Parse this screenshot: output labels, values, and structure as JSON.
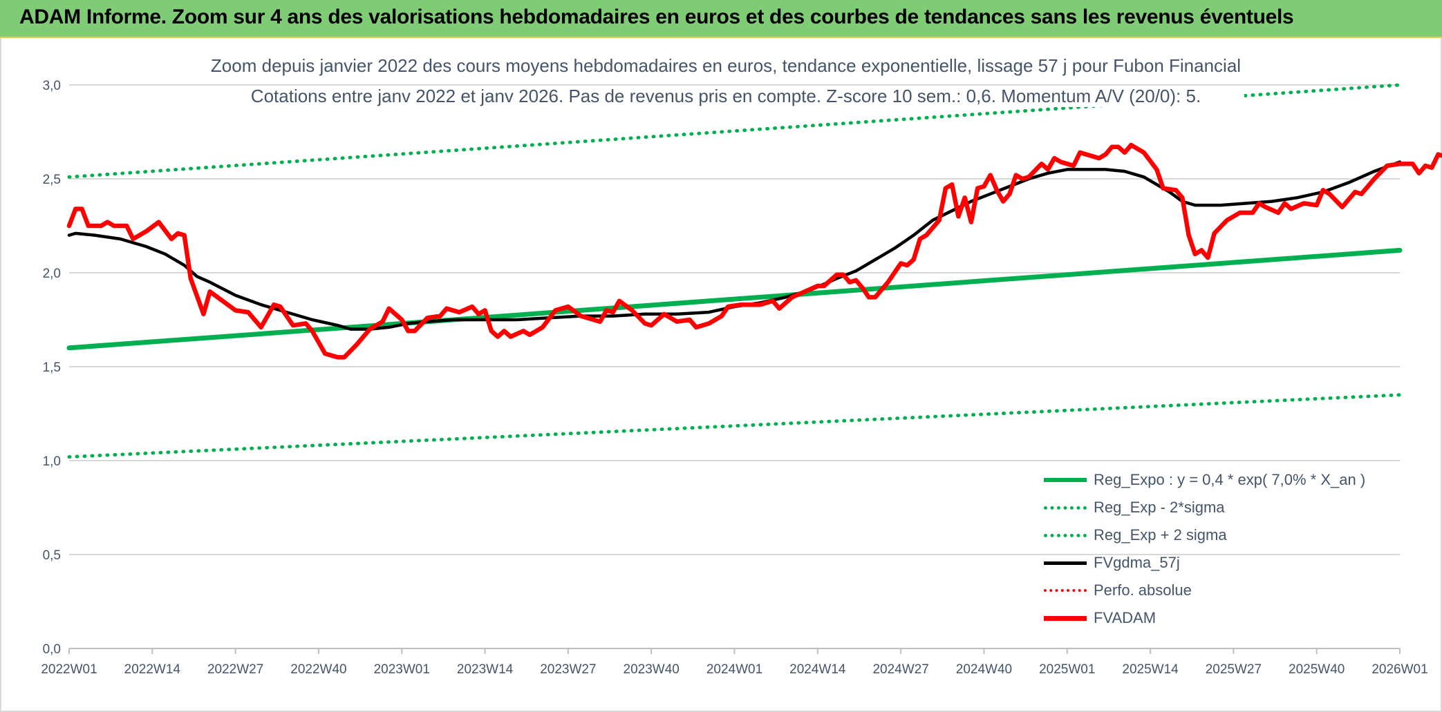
{
  "header": {
    "title": "ADAM Informe. Zoom sur 4 ans des valorisations hebdomadaires en euros et des courbes de tendances sans les revenus éventuels"
  },
  "colors": {
    "banner": "#7fcb76",
    "trend": "#00b050",
    "smooth": "#000000",
    "price": "#ff0000",
    "text": "#44546a",
    "grid": "#d9d9d9"
  },
  "chart_data": {
    "type": "line",
    "title_line1": "Zoom depuis janvier 2022 des cours moyens hebdomadaires en euros, tendance exponentielle, lissage 57 j pour Fubon Financial",
    "title_line2": "Cotations entre janv 2022 et janv 2026. Pas de revenus pris en compte. Z-score 10 sem.: 0,6. Momentum A/V (20/0): 5.",
    "x_tick_labels": [
      "2022W01",
      "2022W14",
      "2022W27",
      "2022W40",
      "2023W01",
      "2023W14",
      "2023W27",
      "2023W40",
      "2024W01",
      "2024W14",
      "2024W27",
      "2024W40",
      "2025W01",
      "2025W14",
      "2025W27",
      "2025W40",
      "2026W01"
    ],
    "y_tick_labels": [
      "0,0",
      "0,5",
      "1,0",
      "1,5",
      "2,0",
      "2,5",
      "3,0"
    ],
    "ylim": [
      0,
      3
    ],
    "grid": true,
    "legend_position": "bottom-right",
    "legend": [
      {
        "label": "Reg_Expo : y = 0,4 * exp( 7,0% *  X_an )",
        "style": "solid-green"
      },
      {
        "label": "Reg_Exp - 2*sigma",
        "style": "dot-green"
      },
      {
        "label": "Reg_Exp + 2 sigma",
        "style": "dot-green"
      },
      {
        "label": "FVgdma_57j",
        "style": "solid-black"
      },
      {
        "label": "Perfo. absolue",
        "style": "dot-red"
      },
      {
        "label": "FVADAM",
        "style": "solid-red"
      }
    ],
    "series": [
      {
        "name": "Reg_Expo : y = 0,4 * exp( 7,0% *  X_an )",
        "points": [
          [
            0,
            1.6
          ],
          [
            208,
            2.12
          ]
        ]
      },
      {
        "name": "Reg_Exp - 2*sigma",
        "points": [
          [
            0,
            1.02
          ],
          [
            208,
            1.35
          ]
        ]
      },
      {
        "name": "Reg_Exp + 2 sigma",
        "points": [
          [
            0,
            2.51
          ],
          [
            208,
            3.0
          ]
        ]
      },
      {
        "name": "FVgdma_57j",
        "points": [
          [
            0,
            2.2
          ],
          [
            1,
            2.21
          ],
          [
            4,
            2.2
          ],
          [
            8,
            2.18
          ],
          [
            12,
            2.14
          ],
          [
            15,
            2.1
          ],
          [
            18,
            2.04
          ],
          [
            20,
            1.98
          ],
          [
            22,
            1.95
          ],
          [
            26,
            1.88
          ],
          [
            30,
            1.83
          ],
          [
            34,
            1.79
          ],
          [
            38,
            1.75
          ],
          [
            42,
            1.72
          ],
          [
            44,
            1.7
          ],
          [
            47,
            1.7
          ],
          [
            50,
            1.71
          ],
          [
            53,
            1.73
          ],
          [
            56,
            1.74
          ],
          [
            60,
            1.75
          ],
          [
            65,
            1.75
          ],
          [
            70,
            1.75
          ],
          [
            75,
            1.76
          ],
          [
            80,
            1.77
          ],
          [
            85,
            1.77
          ],
          [
            90,
            1.78
          ],
          [
            95,
            1.78
          ],
          [
            100,
            1.79
          ],
          [
            104,
            1.82
          ],
          [
            108,
            1.84
          ],
          [
            112,
            1.87
          ],
          [
            116,
            1.91
          ],
          [
            120,
            1.97
          ],
          [
            123,
            2.01
          ],
          [
            126,
            2.07
          ],
          [
            129,
            2.13
          ],
          [
            132,
            2.2
          ],
          [
            135,
            2.28
          ],
          [
            138,
            2.33
          ],
          [
            141,
            2.38
          ],
          [
            144,
            2.42
          ],
          [
            147,
            2.46
          ],
          [
            150,
            2.5
          ],
          [
            153,
            2.53
          ],
          [
            156,
            2.55
          ],
          [
            159,
            2.55
          ],
          [
            162,
            2.55
          ],
          [
            165,
            2.54
          ],
          [
            168,
            2.51
          ],
          [
            170,
            2.47
          ],
          [
            172,
            2.43
          ],
          [
            174,
            2.38
          ],
          [
            176,
            2.36
          ],
          [
            180,
            2.36
          ],
          [
            184,
            2.37
          ],
          [
            188,
            2.38
          ],
          [
            192,
            2.4
          ],
          [
            196,
            2.43
          ],
          [
            200,
            2.48
          ],
          [
            204,
            2.54
          ],
          [
            208,
            2.59
          ]
        ]
      },
      {
        "name": "FVADAM",
        "points": [
          [
            0,
            2.25
          ],
          [
            1,
            2.34
          ],
          [
            2,
            2.34
          ],
          [
            3,
            2.25
          ],
          [
            5,
            2.25
          ],
          [
            6,
            2.27
          ],
          [
            7,
            2.25
          ],
          [
            9,
            2.25
          ],
          [
            10,
            2.18
          ],
          [
            12,
            2.22
          ],
          [
            14,
            2.27
          ],
          [
            16,
            2.18
          ],
          [
            17,
            2.21
          ],
          [
            18,
            2.2
          ],
          [
            19,
            1.97
          ],
          [
            21,
            1.78
          ],
          [
            22,
            1.9
          ],
          [
            24,
            1.85
          ],
          [
            26,
            1.8
          ],
          [
            28,
            1.79
          ],
          [
            30,
            1.71
          ],
          [
            32,
            1.83
          ],
          [
            33,
            1.82
          ],
          [
            35,
            1.72
          ],
          [
            37,
            1.73
          ],
          [
            38,
            1.69
          ],
          [
            40,
            1.57
          ],
          [
            42,
            1.55
          ],
          [
            43,
            1.55
          ],
          [
            45,
            1.62
          ],
          [
            47,
            1.7
          ],
          [
            49,
            1.74
          ],
          [
            50,
            1.81
          ],
          [
            52,
            1.75
          ],
          [
            53,
            1.69
          ],
          [
            54,
            1.69
          ],
          [
            56,
            1.76
          ],
          [
            58,
            1.77
          ],
          [
            59,
            1.81
          ],
          [
            61,
            1.79
          ],
          [
            63,
            1.82
          ],
          [
            64,
            1.78
          ],
          [
            65,
            1.8
          ],
          [
            66,
            1.69
          ],
          [
            67,
            1.66
          ],
          [
            68,
            1.69
          ],
          [
            69,
            1.66
          ],
          [
            71,
            1.69
          ],
          [
            72,
            1.67
          ],
          [
            74,
            1.71
          ],
          [
            76,
            1.8
          ],
          [
            78,
            1.82
          ],
          [
            80,
            1.77
          ],
          [
            82,
            1.75
          ],
          [
            83,
            1.74
          ],
          [
            84,
            1.8
          ],
          [
            85,
            1.79
          ],
          [
            86,
            1.85
          ],
          [
            88,
            1.8
          ],
          [
            90,
            1.73
          ],
          [
            91,
            1.72
          ],
          [
            93,
            1.78
          ],
          [
            95,
            1.74
          ],
          [
            97,
            1.75
          ],
          [
            98,
            1.71
          ],
          [
            100,
            1.73
          ],
          [
            102,
            1.77
          ],
          [
            103,
            1.82
          ],
          [
            105,
            1.83
          ],
          [
            108,
            1.83
          ],
          [
            110,
            1.85
          ],
          [
            111,
            1.81
          ],
          [
            113,
            1.87
          ],
          [
            115,
            1.9
          ],
          [
            117,
            1.93
          ],
          [
            118,
            1.93
          ],
          [
            120,
            1.99
          ],
          [
            121,
            1.99
          ],
          [
            122,
            1.95
          ],
          [
            123,
            1.96
          ],
          [
            124,
            1.92
          ],
          [
            125,
            1.87
          ],
          [
            126,
            1.87
          ],
          [
            128,
            1.95
          ],
          [
            130,
            2.05
          ],
          [
            131,
            2.04
          ],
          [
            132,
            2.07
          ],
          [
            133,
            2.18
          ],
          [
            134,
            2.2
          ],
          [
            136,
            2.28
          ],
          [
            137,
            2.45
          ],
          [
            138,
            2.47
          ],
          [
            139,
            2.3
          ],
          [
            140,
            2.4
          ],
          [
            141,
            2.27
          ],
          [
            142,
            2.45
          ],
          [
            143,
            2.46
          ],
          [
            144,
            2.52
          ],
          [
            145,
            2.44
          ],
          [
            146,
            2.38
          ],
          [
            147,
            2.42
          ],
          [
            148,
            2.52
          ],
          [
            149,
            2.5
          ],
          [
            150,
            2.51
          ],
          [
            152,
            2.58
          ],
          [
            153,
            2.55
          ],
          [
            154,
            2.61
          ],
          [
            155,
            2.59
          ],
          [
            157,
            2.57
          ],
          [
            158,
            2.64
          ],
          [
            160,
            2.62
          ],
          [
            161,
            2.61
          ],
          [
            162,
            2.63
          ],
          [
            163,
            2.67
          ],
          [
            164,
            2.67
          ],
          [
            165,
            2.64
          ],
          [
            166,
            2.68
          ],
          [
            168,
            2.64
          ],
          [
            170,
            2.55
          ],
          [
            171,
            2.45
          ],
          [
            173,
            2.44
          ],
          [
            174,
            2.4
          ],
          [
            175,
            2.2
          ],
          [
            176,
            2.1
          ],
          [
            177,
            2.12
          ],
          [
            178,
            2.08
          ],
          [
            179,
            2.21
          ],
          [
            181,
            2.28
          ],
          [
            183,
            2.32
          ],
          [
            185,
            2.32
          ],
          [
            186,
            2.37
          ],
          [
            187,
            2.35
          ],
          [
            189,
            2.32
          ],
          [
            190,
            2.37
          ],
          [
            191,
            2.34
          ],
          [
            193,
            2.37
          ],
          [
            195,
            2.36
          ],
          [
            196,
            2.44
          ],
          [
            197,
            2.42
          ],
          [
            199,
            2.35
          ],
          [
            201,
            2.43
          ],
          [
            202,
            2.42
          ],
          [
            204,
            2.5
          ],
          [
            206,
            2.57
          ],
          [
            208,
            2.58
          ],
          [
            210,
            2.58
          ],
          [
            211,
            2.53
          ],
          [
            212,
            2.57
          ],
          [
            213,
            2.56
          ],
          [
            214,
            2.63
          ],
          [
            215,
            2.62
          ],
          [
            216,
            2.64
          ],
          [
            217,
            2.63
          ]
        ]
      }
    ]
  }
}
